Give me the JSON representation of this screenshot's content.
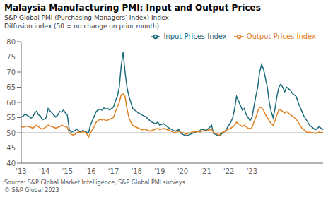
{
  "chart_data": {
    "type": "line",
    "title": "Malaysia Manufacturing PMI: Input and Output Prices",
    "subtitle": [
      "S&P Global PMI (Purchasing Managers’ Index) Index",
      "Diffusion index (50 = no change on prior month)"
    ],
    "annotations": [
      "Source: S&P Global Market Intelligence, S&P Global PMI surveys",
      "© S&P Global 2023"
    ],
    "categories": [
      "'13",
      null,
      null,
      null,
      null,
      null,
      null,
      null,
      null,
      null,
      null,
      null,
      "'14",
      null,
      null,
      null,
      null,
      null,
      null,
      null,
      null,
      null,
      null,
      null,
      "'15",
      null,
      null,
      null,
      null,
      null,
      null,
      null,
      null,
      null,
      null,
      null,
      "'16",
      null,
      null,
      null,
      null,
      null,
      null,
      null,
      null,
      null,
      null,
      null,
      "'17",
      null,
      null,
      null,
      null,
      null,
      null,
      null,
      null,
      null,
      null,
      null,
      "'18",
      null,
      null,
      null,
      null,
      null,
      null,
      null,
      null,
      null,
      null,
      null,
      "'19",
      null,
      null,
      null,
      null,
      null,
      null,
      null,
      null,
      null,
      null,
      null,
      "'20",
      null,
      null,
      null,
      null,
      null,
      null,
      null,
      null,
      null,
      null,
      null,
      "'21",
      null,
      null,
      null,
      null,
      null,
      null,
      null,
      null,
      null,
      null,
      null,
      "'22",
      null,
      null,
      null,
      null,
      null,
      null,
      null,
      null,
      null,
      null,
      null,
      "'23",
      null,
      null,
      null,
      null,
      null,
      null,
      null,
      null,
      null,
      null,
      null,
      null,
      null,
      null,
      null,
      null,
      null,
      null,
      null,
      null,
      null,
      null,
      null,
      null,
      null,
      null,
      null,
      null,
      null,
      null,
      null,
      null,
      null,
      null,
      null,
      null,
      null
    ],
    "ylim": [
      40,
      80
    ],
    "yticks": [
      40,
      45,
      50,
      55,
      60,
      65,
      70,
      75,
      80
    ],
    "reference_line": 50,
    "grid": false,
    "legend": "upper right",
    "series": [
      {
        "name": "Input Prices Index",
        "color": "#1b6b7b",
        "values": [
          55.2,
          55.5,
          56.1,
          55.8,
          55.4,
          54.8,
          55.2,
          56.5,
          57.1,
          55.9,
          55.5,
          54.3,
          54.5,
          55.0,
          58.0,
          57.2,
          56.5,
          55.8,
          55.2,
          55.8,
          57.0,
          56.8,
          57.5,
          56.5,
          55.8,
          51.0,
          50.2,
          50.5,
          50.8,
          51.2,
          50.5,
          50.2,
          50.8,
          50.5,
          50.2,
          50.0,
          52.5,
          54.0,
          55.5,
          57.0,
          57.5,
          57.8,
          57.5,
          58.2,
          57.8,
          58.0,
          57.5,
          58.0,
          58.5,
          60.5,
          62.0,
          65.0,
          72.0,
          76.5,
          70.0,
          65.0,
          62.0,
          60.0,
          58.0,
          57.5,
          57.0,
          56.5,
          56.2,
          55.8,
          55.5,
          55.2,
          54.5,
          54.0,
          53.5,
          53.2,
          53.0,
          53.5,
          52.5,
          52.8,
          53.0,
          52.5,
          52.0,
          51.5,
          51.2,
          50.8,
          50.5,
          50.8,
          51.0,
          49.8,
          49.5,
          49.2,
          49.0,
          49.2,
          49.5,
          49.8,
          50.0,
          50.2,
          50.5,
          50.8,
          51.2,
          51.0,
          50.8,
          51.2,
          51.8,
          52.5,
          49.8,
          49.5,
          49.2,
          49.0,
          49.5,
          50.0,
          50.5,
          51.5,
          52.5,
          53.5,
          55.0,
          58.0,
          62.0,
          60.5,
          59.0,
          57.5,
          58.0,
          56.0,
          55.0,
          54.0,
          55.0,
          58.5,
          62.0,
          65.0,
          70.0,
          72.5,
          71.0,
          68.0,
          65.0,
          60.0,
          57.0,
          55.0,
          58.0,
          62.0,
          65.0,
          66.0,
          65.0,
          63.5,
          65.0,
          64.5,
          64.0,
          63.0,
          62.5,
          62.0,
          60.0,
          58.5,
          57.0,
          55.5,
          54.5,
          53.5,
          52.5,
          52.0,
          51.5,
          51.0,
          51.5,
          52.0,
          51.5,
          51.0
        ]
      },
      {
        "name": "Output Prices Index",
        "color": "#e08020",
        "values": [
          52.0,
          51.8,
          52.0,
          52.2,
          52.0,
          51.8,
          51.5,
          52.0,
          52.5,
          52.0,
          51.5,
          51.2,
          51.5,
          52.0,
          52.5,
          52.2,
          52.0,
          51.8,
          51.5,
          51.8,
          52.0,
          52.5,
          52.2,
          52.0,
          51.8,
          50.0,
          49.5,
          49.2,
          49.5,
          50.0,
          50.2,
          50.0,
          50.5,
          50.2,
          49.8,
          48.5,
          50.0,
          51.0,
          52.0,
          53.5,
          54.0,
          54.5,
          54.2,
          54.5,
          54.0,
          54.2,
          54.5,
          54.8,
          55.0,
          57.0,
          58.5,
          60.0,
          62.5,
          62.8,
          62.0,
          58.0,
          55.0,
          53.5,
          52.5,
          52.0,
          51.8,
          51.5,
          51.2,
          51.0,
          51.2,
          51.0,
          50.8,
          50.5,
          50.8,
          51.0,
          51.2,
          51.5,
          51.0,
          51.2,
          51.5,
          51.2,
          51.0,
          50.8,
          50.5,
          50.2,
          50.0,
          50.2,
          50.5,
          50.2,
          50.0,
          49.8,
          49.5,
          49.8,
          50.0,
          50.2,
          50.5,
          50.2,
          50.5,
          50.2,
          50.5,
          50.8,
          50.5,
          50.8,
          51.0,
          51.2,
          50.0,
          49.8,
          49.5,
          49.2,
          50.0,
          50.2,
          50.5,
          51.0,
          51.2,
          51.5,
          52.0,
          52.5,
          53.5,
          53.0,
          52.5,
          52.0,
          52.5,
          52.0,
          51.5,
          51.2,
          51.8,
          53.5,
          55.0,
          57.0,
          58.5,
          58.2,
          57.5,
          56.0,
          55.0,
          54.0,
          53.0,
          52.5,
          54.0,
          56.0,
          57.5,
          57.5,
          57.0,
          56.5,
          57.0,
          56.5,
          56.0,
          55.5,
          55.0,
          54.5,
          53.5,
          52.5,
          51.5,
          51.0,
          50.5,
          50.0,
          50.2,
          50.0,
          50.0,
          49.8,
          50.0,
          50.2,
          50.0,
          50.2
        ]
      }
    ]
  }
}
